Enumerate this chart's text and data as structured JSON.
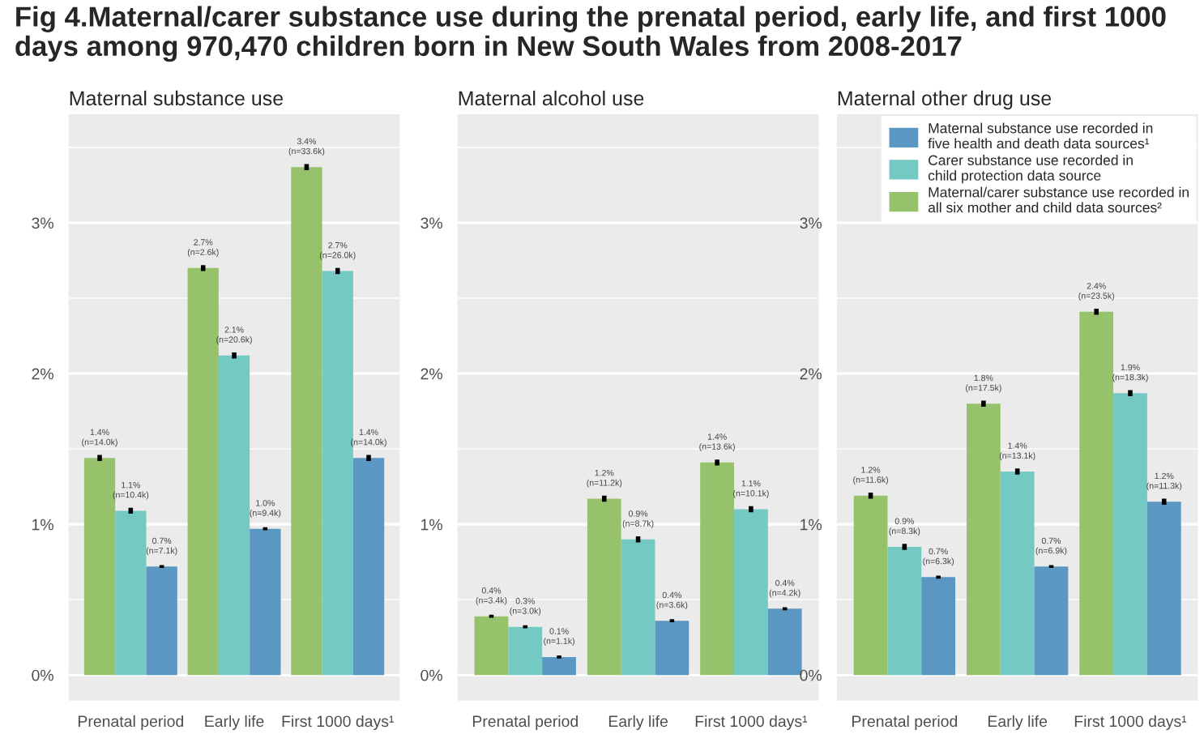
{
  "chart_data": [
    {
      "type": "bar",
      "title": "Maternal substance use",
      "annotations": [
        "Fig 4.Maternal/carer substance use during the prenatal period, early life, and first 1000 days among 970,470 children born in New South Wales from 2008-2017"
      ],
      "categories": [
        "Prenatal period",
        "Early life",
        "First 1000 days¹"
      ],
      "ylim": [
        -0.17,
        3.72
      ],
      "yticks": [
        {
          "value": 0,
          "label": "0%"
        },
        {
          "value": 1,
          "label": "1%"
        },
        {
          "value": 2,
          "label": "2%"
        },
        {
          "value": 3,
          "label": "3%"
        }
      ],
      "grid": true,
      "legend": false,
      "series": [
        {
          "color": "#97c26c",
          "values": [
            1.44,
            2.7,
            3.37
          ],
          "errors": [
            0.02,
            0.02,
            0.02
          ],
          "value_labels": [
            "1.4%\n(n=14.0k)",
            "2.7%\n(n=2.6k)",
            "3.4%\n(n=33.6k)"
          ]
        },
        {
          "color": "#74c9c2",
          "values": [
            1.09,
            2.12,
            2.68
          ],
          "errors": [
            0.02,
            0.02,
            0.02
          ],
          "value_labels": [
            "1.1%\n(n=10.4k)",
            "2.1%\n(n=20.6k)",
            "2.7%\n(n=26.0k)"
          ]
        },
        {
          "color": "#5a97c3",
          "values": [
            0.72,
            0.97,
            1.44
          ],
          "errors": [
            0.01,
            0.01,
            0.02
          ],
          "value_labels": [
            "0.7%\n(n=7.1k)",
            "1.0%\n(n=9.4k)",
            "1.4%\n(n=14.0k)"
          ]
        }
      ]
    },
    {
      "type": "bar",
      "title": "Maternal alcohol use",
      "categories": [
        "Prenatal period",
        "Early life",
        "First 1000 days¹"
      ],
      "ylim": [
        -0.17,
        3.72
      ],
      "yticks": [
        {
          "value": 0,
          "label": "0%"
        },
        {
          "value": 1,
          "label": "1%"
        },
        {
          "value": 2,
          "label": "2%"
        },
        {
          "value": 3,
          "label": "3%"
        }
      ],
      "grid": true,
      "legend": false,
      "series": [
        {
          "color": "#97c26c",
          "values": [
            0.39,
            1.17,
            1.41
          ],
          "errors": [
            0.01,
            0.02,
            0.02
          ],
          "value_labels": [
            "0.4%\n(n=3.4k)",
            "1.2%\n(n=11.2k)",
            "1.4%\n(n=13.6k)"
          ]
        },
        {
          "color": "#74c9c2",
          "values": [
            0.32,
            0.9,
            1.1
          ],
          "errors": [
            0.01,
            0.02,
            0.02
          ],
          "value_labels": [
            "0.3%\n(n=3.0k)",
            "0.9%\n(n=8.7k)",
            "1.1%\n(n=10.1k)"
          ]
        },
        {
          "color": "#5a97c3",
          "values": [
            0.12,
            0.36,
            0.44
          ],
          "errors": [
            0.01,
            0.01,
            0.01
          ],
          "value_labels": [
            "0.1%\n(n=1.1k)",
            "0.4%\n(n=3.6k)",
            "0.4%\n(n=4.2k)"
          ]
        }
      ]
    },
    {
      "type": "bar",
      "title": "Maternal other drug use",
      "categories": [
        "Prenatal period",
        "Early life",
        "First 1000 days¹"
      ],
      "ylim": [
        -0.17,
        3.72
      ],
      "yticks": [
        {
          "value": 0,
          "label": "0%"
        },
        {
          "value": 1,
          "label": "1%"
        },
        {
          "value": 2,
          "label": "2%"
        },
        {
          "value": 3,
          "label": "3%"
        }
      ],
      "grid": true,
      "legend": "top right",
      "series": [
        {
          "name": "Maternal/carer substance use recorded in\nall six mother and child data sources²",
          "color": "#97c26c",
          "values": [
            1.19,
            1.8,
            2.41
          ],
          "errors": [
            0.02,
            0.02,
            0.02
          ],
          "value_labels": [
            "1.2%\n(n=11.6k)",
            "1.8%\n(n=17.5k)",
            "2.4%\n(n=23.5k)"
          ]
        },
        {
          "name": "Carer substance use recorded in\nchild protection data source",
          "color": "#74c9c2",
          "values": [
            0.85,
            1.35,
            1.87
          ],
          "errors": [
            0.02,
            0.02,
            0.02
          ],
          "value_labels": [
            "0.9%\n(n=8.3k)",
            "1.4%\n(n=13.1k)",
            "1.9%\n(n=18.3k)"
          ]
        },
        {
          "name": "Maternal substance use recorded in\nfive health and death data sources¹",
          "color": "#5a97c3",
          "values": [
            0.65,
            0.72,
            1.15
          ],
          "errors": [
            0.01,
            0.01,
            0.02
          ],
          "value_labels": [
            "0.7%\n(n=6.3k)",
            "0.7%\n(n=6.9k)",
            "1.2%\n(n=11.3k)"
          ]
        }
      ]
    }
  ]
}
